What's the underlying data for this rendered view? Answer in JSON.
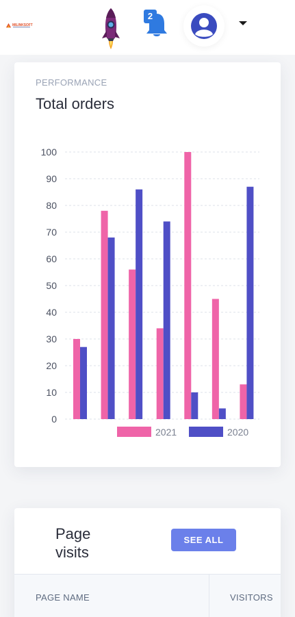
{
  "header": {
    "logo_text": "MILINKSOFT",
    "notification_count": "2",
    "icons": [
      "rocket-icon",
      "bell-icon",
      "user-avatar-icon",
      "caret-down-icon"
    ],
    "colors": {
      "badge": "#2f7ae0",
      "avatar": "#3a4bbf",
      "rocket_body": "#7b2b78"
    }
  },
  "performance": {
    "subtitle": "PERFORMANCE",
    "title": "Total orders"
  },
  "chart_data": {
    "type": "bar",
    "categories": [
      "",
      "",
      "",
      "",
      "",
      "",
      ""
    ],
    "series": [
      {
        "name": "2021",
        "color": "#ef64a8",
        "values": [
          30,
          78,
          56,
          34,
          100,
          45,
          13
        ]
      },
      {
        "name": "2020",
        "color": "#4f4fc6",
        "values": [
          27,
          68,
          86,
          74,
          10,
          4,
          87
        ]
      }
    ],
    "ylim": [
      0,
      100
    ],
    "yticks": [
      "0",
      "10",
      "20",
      "30",
      "40",
      "50",
      "60",
      "70",
      "80",
      "90",
      "100"
    ],
    "grid": true,
    "legend": "bottom-right"
  },
  "page_visits": {
    "title": "Page visits",
    "see_all_label": "SEE ALL",
    "columns": [
      "PAGE NAME",
      "VISITORS"
    ]
  }
}
